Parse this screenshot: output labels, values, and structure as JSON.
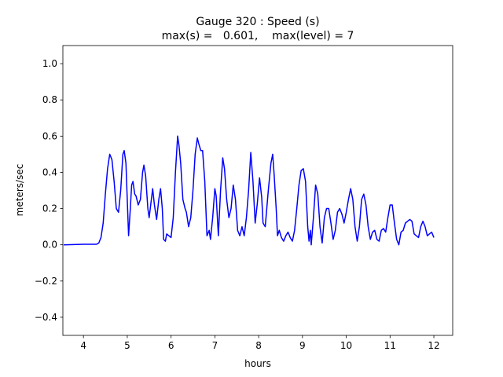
{
  "chart_data": {
    "type": "line",
    "title": "Gauge 320 : Speed (s)",
    "subtitle": "max(s) =   0.601,    max(level) = 7",
    "x_label": "hours",
    "y_label": "meters/sec",
    "xlim": [
      3.53,
      12.43
    ],
    "ylim": [
      -0.5,
      1.1
    ],
    "xticks": [
      4,
      5,
      6,
      7,
      8,
      9,
      10,
      11,
      12
    ],
    "yticks": [
      {
        "value": -0.4,
        "label": "−0.4"
      },
      {
        "value": -0.2,
        "label": "−0.2"
      },
      {
        "value": 0,
        "label": "0.0"
      },
      {
        "value": 0.2,
        "label": "0.2"
      },
      {
        "value": 0.4,
        "label": "0.4"
      },
      {
        "value": 0.6,
        "label": "0.6"
      },
      {
        "value": 0.8,
        "label": "0.8"
      },
      {
        "value": 1,
        "label": "1.0"
      }
    ],
    "series": [
      {
        "color": "#0000ff",
        "x": [
          3.55,
          4.0,
          4.3,
          4.35,
          4.4,
          4.45,
          4.5,
          4.55,
          4.6,
          4.65,
          4.7,
          4.75,
          4.8,
          4.85,
          4.9,
          4.93,
          4.97,
          5.0,
          5.03,
          5.07,
          5.1,
          5.13,
          5.17,
          5.2,
          5.25,
          5.3,
          5.35,
          5.38,
          5.42,
          5.47,
          5.5,
          5.55,
          5.58,
          5.62,
          5.67,
          5.72,
          5.76,
          5.8,
          5.83,
          5.87,
          5.9,
          5.95,
          6.0,
          6.05,
          6.1,
          6.15,
          6.18,
          6.22,
          6.27,
          6.32,
          6.35,
          6.4,
          6.45,
          6.5,
          6.55,
          6.6,
          6.63,
          6.68,
          6.72,
          6.77,
          6.82,
          6.87,
          6.9,
          6.95,
          7.0,
          7.03,
          7.08,
          7.13,
          7.18,
          7.22,
          7.27,
          7.32,
          7.37,
          7.42,
          7.47,
          7.52,
          7.57,
          7.62,
          7.67,
          7.72,
          7.77,
          7.82,
          7.87,
          7.92,
          7.97,
          8.02,
          8.07,
          8.1,
          8.15,
          8.22,
          8.28,
          8.32,
          8.35,
          8.4,
          8.43,
          8.47,
          8.52,
          8.57,
          8.62,
          8.67,
          8.72,
          8.77,
          8.82,
          8.87,
          8.92,
          8.97,
          9.02,
          9.07,
          9.12,
          9.15,
          9.18,
          9.2,
          9.25,
          9.3,
          9.35,
          9.4,
          9.45,
          9.5,
          9.55,
          9.6,
          9.65,
          9.7,
          9.75,
          9.8,
          9.85,
          9.9,
          9.95,
          10.0,
          10.05,
          10.1,
          10.15,
          10.2,
          10.25,
          10.3,
          10.35,
          10.4,
          10.45,
          10.5,
          10.55,
          10.6,
          10.65,
          10.7,
          10.75,
          10.8,
          10.85,
          10.9,
          10.95,
          11.0,
          11.05,
          11.1,
          11.15,
          11.2,
          11.25,
          11.3,
          11.35,
          11.4,
          11.45,
          11.5,
          11.55,
          11.6,
          11.65,
          11.7,
          11.75,
          11.8,
          11.85,
          11.9,
          11.95,
          12.0
        ],
        "values": [
          0.0,
          0.003,
          0.003,
          0.01,
          0.04,
          0.12,
          0.28,
          0.42,
          0.5,
          0.47,
          0.35,
          0.2,
          0.18,
          0.3,
          0.5,
          0.52,
          0.45,
          0.25,
          0.05,
          0.2,
          0.33,
          0.35,
          0.28,
          0.27,
          0.22,
          0.25,
          0.4,
          0.44,
          0.38,
          0.2,
          0.15,
          0.25,
          0.31,
          0.22,
          0.14,
          0.25,
          0.31,
          0.2,
          0.03,
          0.02,
          0.06,
          0.05,
          0.04,
          0.15,
          0.4,
          0.6,
          0.55,
          0.45,
          0.25,
          0.2,
          0.18,
          0.1,
          0.15,
          0.3,
          0.5,
          0.59,
          0.56,
          0.52,
          0.52,
          0.35,
          0.05,
          0.08,
          0.03,
          0.15,
          0.31,
          0.27,
          0.05,
          0.3,
          0.48,
          0.42,
          0.25,
          0.15,
          0.2,
          0.33,
          0.25,
          0.08,
          0.05,
          0.1,
          0.05,
          0.15,
          0.3,
          0.51,
          0.35,
          0.12,
          0.23,
          0.37,
          0.26,
          0.12,
          0.1,
          0.3,
          0.45,
          0.5,
          0.4,
          0.2,
          0.05,
          0.08,
          0.04,
          0.02,
          0.05,
          0.07,
          0.04,
          0.02,
          0.08,
          0.2,
          0.33,
          0.41,
          0.42,
          0.35,
          0.1,
          0.02,
          0.08,
          0.0,
          0.15,
          0.33,
          0.28,
          0.1,
          0.01,
          0.15,
          0.2,
          0.2,
          0.12,
          0.03,
          0.08,
          0.18,
          0.2,
          0.17,
          0.12,
          0.18,
          0.25,
          0.31,
          0.25,
          0.1,
          0.02,
          0.1,
          0.25,
          0.28,
          0.22,
          0.1,
          0.03,
          0.07,
          0.08,
          0.03,
          0.02,
          0.08,
          0.09,
          0.07,
          0.15,
          0.22,
          0.22,
          0.12,
          0.03,
          0.0,
          0.07,
          0.08,
          0.12,
          0.13,
          0.14,
          0.13,
          0.06,
          0.05,
          0.04,
          0.1,
          0.13,
          0.1,
          0.05,
          0.06,
          0.07,
          0.04
        ]
      }
    ]
  }
}
